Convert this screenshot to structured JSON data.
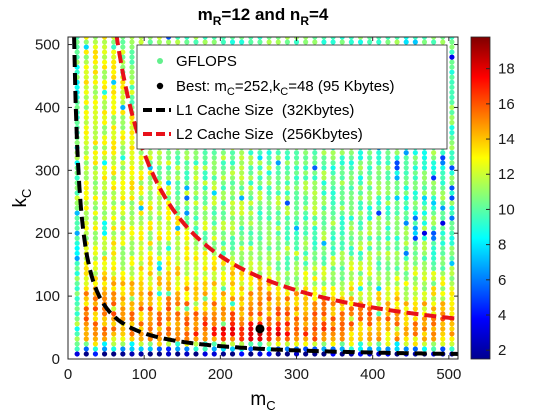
{
  "chart_data": {
    "type": "scatter",
    "title": {
      "main": "m",
      "sub1": "R",
      "mid": "=12 and n",
      "sub2": "R",
      "tail": "=4"
    },
    "xlabel": {
      "main": "m",
      "sub": "C"
    },
    "ylabel": {
      "main": "k",
      "sub": "C"
    },
    "xlim": [
      0,
      512
    ],
    "ylim": [
      0,
      512
    ],
    "xticks": [
      0,
      100,
      200,
      300,
      400,
      500
    ],
    "yticks": [
      0,
      100,
      200,
      300,
      400,
      500
    ],
    "grid": false,
    "legend_position": "top-right",
    "colorbar": {
      "range": [
        1.5,
        19.8
      ],
      "ticks": [
        2,
        4,
        6,
        8,
        10,
        12,
        14,
        16,
        18
      ],
      "colormap": "jet"
    },
    "scatter_grid": {
      "m_values_step": 12,
      "k_values_step": 8,
      "m_max": 504,
      "k_max": 512,
      "metric": "GFLOPS"
    },
    "best_point": {
      "m": 252,
      "k": 48
    },
    "series": [
      {
        "name": "GFLOPS",
        "color": "#62f08c",
        "marker": "dot"
      },
      {
        "name": "Best",
        "label": {
          "a": "Best: m",
          "b": "C",
          "c": "=252,k",
          "d": "C",
          "e": "=48 (95 Kbytes)"
        },
        "color": "#000000",
        "marker": "dot"
      },
      {
        "name": "L1 Cache Size  (32Kbytes)",
        "color": "#000000",
        "style": "dashed",
        "cache_bytes": 32768
      },
      {
        "name": "L2 Cache Size  (256Kbytes)",
        "color": "#e8101a",
        "style": "dashed",
        "cache_bytes": 262144
      }
    ]
  }
}
